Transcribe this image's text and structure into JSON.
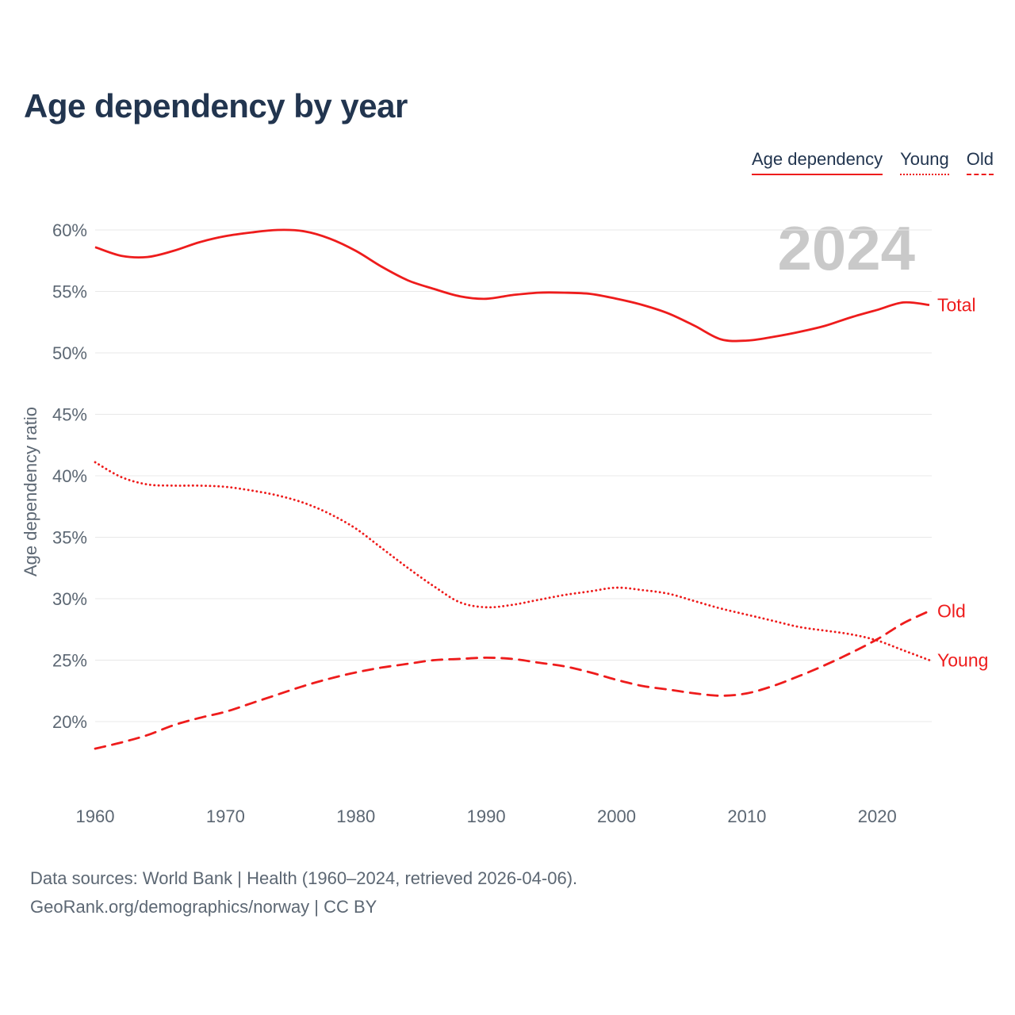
{
  "title": "Age dependency by year",
  "watermark": "2024",
  "legend": {
    "items": [
      {
        "label": "Age dependency",
        "style": "solid"
      },
      {
        "label": "Young",
        "style": "dotted"
      },
      {
        "label": "Old",
        "style": "dashed"
      }
    ]
  },
  "footer": {
    "line1": "Data sources: World Bank | Health (1960–2024, retrieved 2026-04-06).",
    "line2": "GeoRank.org/demographics/norway | CC BY"
  },
  "colors": {
    "accent": "#ee1c1c",
    "title": "#22354f",
    "axis_text": "#5c6773",
    "grid": "#e8e8e8",
    "watermark": "#c9c9c9"
  },
  "chart_data": {
    "type": "line",
    "title": "Age dependency by year",
    "xlabel": "",
    "ylabel": "Age dependency ratio",
    "grid": "horizontal",
    "legend_position": "top-right",
    "xlim": [
      1960,
      2024
    ],
    "ylim": [
      17,
      62
    ],
    "xticks": [
      1960,
      1970,
      1980,
      1990,
      2000,
      2010,
      2020
    ],
    "yticks": [
      20,
      25,
      30,
      35,
      40,
      45,
      50,
      55,
      60
    ],
    "ytick_suffix": "%",
    "x": [
      1960,
      1962,
      1964,
      1966,
      1968,
      1970,
      1972,
      1974,
      1976,
      1978,
      1980,
      1982,
      1984,
      1986,
      1988,
      1990,
      1992,
      1994,
      1996,
      1998,
      2000,
      2002,
      2004,
      2006,
      2008,
      2010,
      2012,
      2014,
      2016,
      2018,
      2020,
      2022,
      2024
    ],
    "series": [
      {
        "name": "Total",
        "style": "solid",
        "values": [
          58.6,
          57.9,
          57.8,
          58.3,
          59.0,
          59.5,
          59.8,
          60.0,
          59.9,
          59.3,
          58.3,
          57.0,
          55.9,
          55.2,
          54.6,
          54.4,
          54.7,
          54.9,
          54.9,
          54.8,
          54.4,
          53.9,
          53.2,
          52.2,
          51.1,
          51.0,
          51.3,
          51.7,
          52.2,
          52.9,
          53.5,
          54.1,
          53.9
        ]
      },
      {
        "name": "Young",
        "style": "dotted",
        "values": [
          41.1,
          39.9,
          39.3,
          39.2,
          39.2,
          39.1,
          38.8,
          38.4,
          37.8,
          36.9,
          35.7,
          34.1,
          32.5,
          31.0,
          29.7,
          29.3,
          29.5,
          29.9,
          30.3,
          30.6,
          30.9,
          30.7,
          30.4,
          29.8,
          29.2,
          28.7,
          28.2,
          27.7,
          27.4,
          27.1,
          26.6,
          25.8,
          25.0
        ]
      },
      {
        "name": "Old",
        "style": "dashed",
        "values": [
          17.8,
          18.3,
          18.9,
          19.7,
          20.3,
          20.8,
          21.5,
          22.2,
          22.9,
          23.5,
          24.0,
          24.4,
          24.7,
          25.0,
          25.1,
          25.2,
          25.1,
          24.8,
          24.5,
          24.0,
          23.4,
          22.9,
          22.6,
          22.3,
          22.1,
          22.3,
          22.9,
          23.7,
          24.6,
          25.6,
          26.7,
          28.0,
          29.0
        ]
      }
    ]
  }
}
